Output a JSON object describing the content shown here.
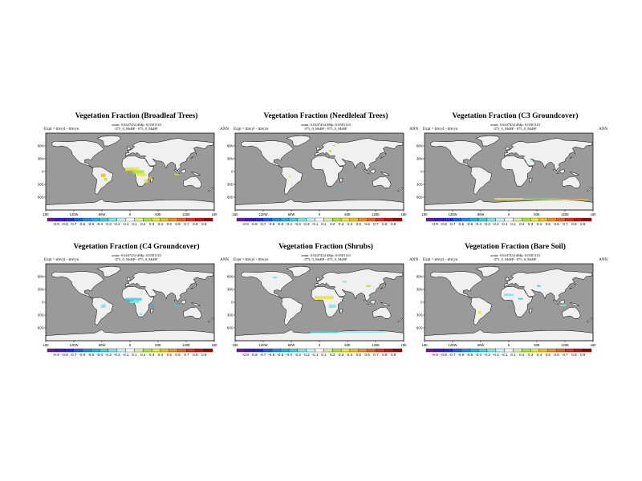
{
  "panels": [
    {
      "title": "Vegetation Fraction (Broadleaf Trees)",
      "subtitle1": "xmin: 0.0447434 dMp: 0.0581143",
      "subtitle2": "075_0_MsBP - 075_0_MsBP",
      "expt": "Expt = tmvyl - tmvyo",
      "period": "ANN"
    },
    {
      "title": "Vegetation Fraction (Needleleaf Trees)",
      "subtitle1": "xmin: 0.0447434 dMp: 0.0581143",
      "subtitle2": "075_0_MsBP - 075_0_MsBP",
      "expt": "Expt = tmvyl - tmvyo",
      "period": "ANN"
    },
    {
      "title": "Vegetation Fraction (C3 Groundcover)",
      "subtitle1": "xmin: 0.0447434 dMp: 0.0581143",
      "subtitle2": "075_0_MsBP - 075_0_MsBP",
      "expt": "Expt = tmvyl - tmvyo",
      "period": "ANN"
    },
    {
      "title": "Vegetation Fraction (C4 Groundcover)",
      "subtitle1": "xmin: 0.0447434 dMp: 0.0581143",
      "subtitle2": "075_0_MsBP - 075_0_MsBP",
      "expt": "Expt = tmvyl - tmvyo",
      "period": "ANN"
    },
    {
      "title": "Vegetation Fraction (Shrubs)",
      "subtitle1": "xmin: 0.0447434 dMp: 0.0581143",
      "subtitle2": "075_0_MsBP - 075_0_MsBP",
      "expt": "Expt = tmvyl - tmvyo",
      "period": "ANN"
    },
    {
      "title": "Vegetation Fraction (Bare Soil)",
      "subtitle1": "xmin: 0.0447434 dMp: 0.0581143",
      "subtitle2": "075_0_MsBP - 075_0_MsBP",
      "expt": "Expt = tmvyl - tmvyo",
      "period": "ANN"
    }
  ],
  "axes": {
    "lon_ticks": [
      "180",
      "120W",
      "60W",
      "0",
      "60E",
      "120E",
      "180"
    ],
    "lat_ticks": [
      "60N",
      "30N",
      "0",
      "30S",
      "60S"
    ]
  },
  "colorbar": {
    "labels": [
      "-0.9",
      "-0.8",
      "-0.7",
      "-0.6",
      "-0.5",
      "-0.4",
      "-0.3",
      "-0.2",
      "-0.1",
      "0.1",
      "0.2",
      "0.3",
      "0.4",
      "0.5",
      "0.6",
      "0.7",
      "0.8",
      "0.9"
    ],
    "colors": [
      "#6a1ea8",
      "#3f1ecf",
      "#2430e8",
      "#1e5ef2",
      "#1e8ef2",
      "#22b4e8",
      "#3fd0d8",
      "#7ee6e6",
      "#c8f2f2",
      "#ffffff",
      "#d8f0a0",
      "#b0e040",
      "#e8e840",
      "#f0c020",
      "#f09020",
      "#f06020",
      "#e83020",
      "#c81414",
      "#a00a0a"
    ]
  },
  "colors": {
    "ocean": "#9a9a9a",
    "land": "#f0f0f0",
    "coast": "#000000"
  }
}
